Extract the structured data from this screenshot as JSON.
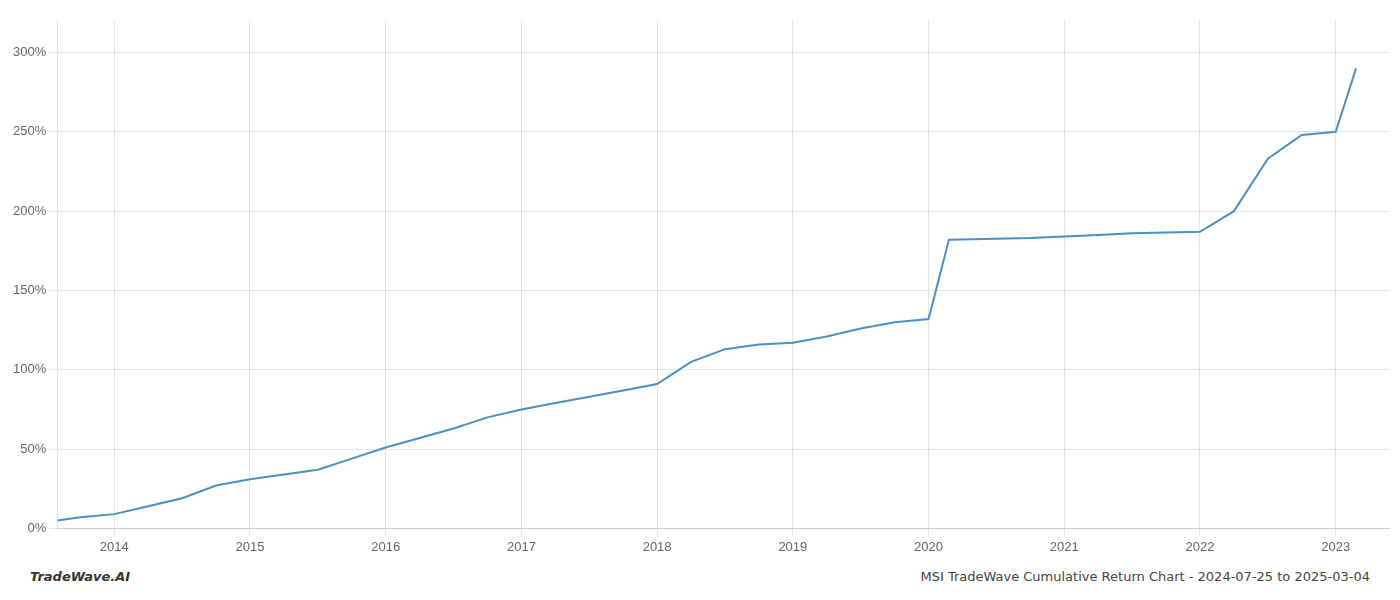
{
  "chart_data": {
    "type": "line",
    "title": "MSI TradeWave Cumulative Return Chart - 2024-07-25 to 2025-03-04",
    "annotations": [
      "TradeWave.AI"
    ],
    "color": "#4a90c4",
    "grid": true,
    "x": [
      2013.58,
      2013.75,
      2014.0,
      2014.25,
      2014.5,
      2014.75,
      2015.0,
      2015.25,
      2015.5,
      2015.75,
      2016.0,
      2016.25,
      2016.5,
      2016.75,
      2017.0,
      2017.25,
      2017.5,
      2017.75,
      2018.0,
      2018.25,
      2018.5,
      2018.75,
      2019.0,
      2019.25,
      2019.5,
      2019.75,
      2020.0,
      2020.15,
      2020.75,
      2021.0,
      2021.25,
      2021.5,
      2022.0,
      2022.25,
      2022.5,
      2022.75,
      2023.0,
      2023.15
    ],
    "values": [
      5,
      7,
      9,
      14,
      19,
      27,
      31,
      34,
      37,
      44,
      51,
      57,
      63,
      70,
      75,
      79,
      83,
      87,
      91,
      105,
      113,
      116,
      117,
      121,
      126,
      130,
      132,
      182,
      183,
      184,
      185,
      186,
      187,
      200,
      233,
      248,
      250,
      290
    ],
    "xlim": [
      2013.58,
      2023.4
    ],
    "xticks": [
      2014,
      2015,
      2016,
      2017,
      2018,
      2019,
      2020,
      2021,
      2022,
      2023
    ],
    "ylim": [
      0,
      320
    ],
    "yticks": [
      {
        "value": 0,
        "label": "0%"
      },
      {
        "value": 50,
        "label": "50%"
      },
      {
        "value": 100,
        "label": "100%"
      },
      {
        "value": 150,
        "label": "150%"
      },
      {
        "value": 200,
        "label": "200%"
      },
      {
        "value": 250,
        "label": "250%"
      },
      {
        "value": 300,
        "label": "300%"
      }
    ]
  }
}
